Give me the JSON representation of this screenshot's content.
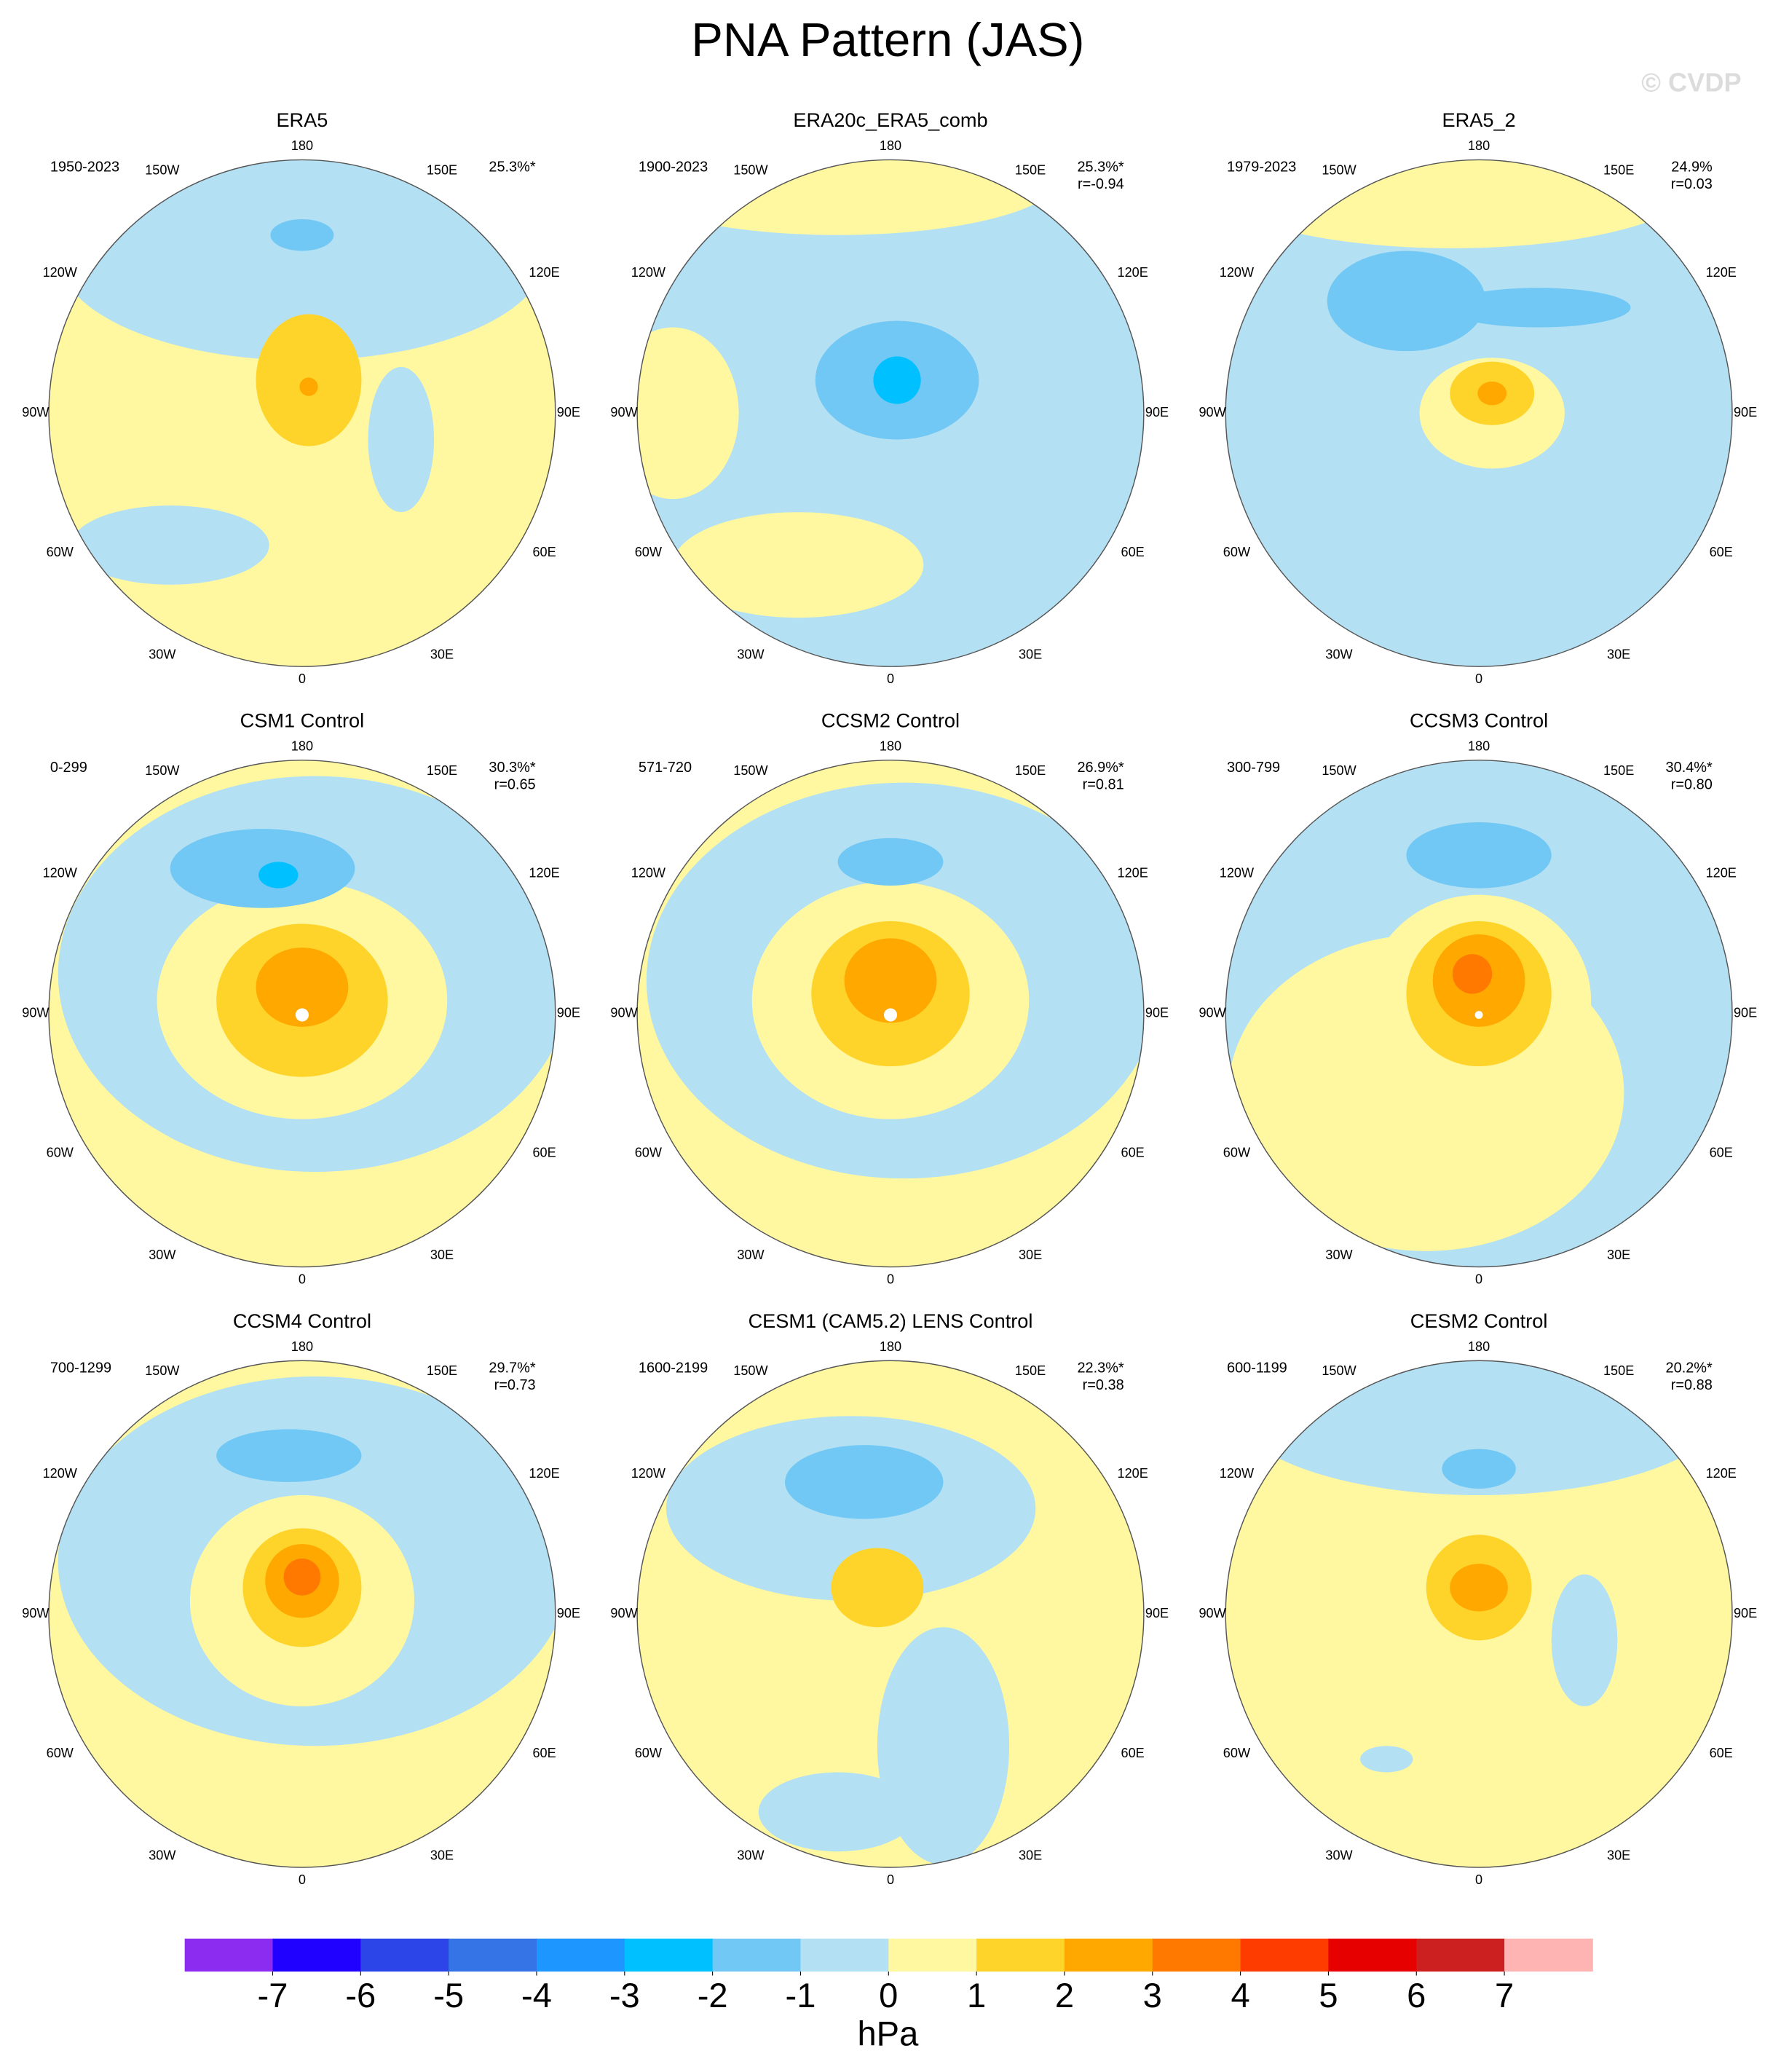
{
  "chart_data": {
    "type": "polar-map-panels",
    "title": "PNA Pattern (JAS)",
    "watermark": "© CVDP",
    "longitude_labels": [
      "0",
      "30E",
      "60E",
      "90E",
      "120E",
      "150E",
      "180",
      "150W",
      "120W",
      "90W",
      "60W",
      "30W"
    ],
    "panels": [
      {
        "title": "ERA5",
        "period": "1950-2023",
        "variance": "25.3%*"
      },
      {
        "title": "ERA20c_ERA5_comb",
        "period": "1900-2023",
        "variance": "25.3%*",
        "correlation": "r=-0.94"
      },
      {
        "title": "ERA5_2",
        "period": "1979-2023",
        "variance": "24.9%",
        "correlation": "r=0.03"
      },
      {
        "title": "CSM1 Control",
        "period": "0-299",
        "variance": "30.3%*",
        "correlation": "r=0.65"
      },
      {
        "title": "CCSM2 Control",
        "period": "571-720",
        "variance": "26.9%*",
        "correlation": "r=0.81"
      },
      {
        "title": "CCSM3 Control",
        "period": "300-799",
        "variance": "30.4%*",
        "correlation": "r=0.80"
      },
      {
        "title": "CCSM4 Control",
        "period": "700-1299",
        "variance": "29.7%*",
        "correlation": "r=0.73"
      },
      {
        "title": "CESM1 (CAM5.2) LENS Control",
        "period": "1600-2199",
        "variance": "22.3%*",
        "correlation": "r=0.38"
      },
      {
        "title": "CESM2 Control",
        "period": "600-1199",
        "variance": "20.2%*",
        "correlation": "r=0.88"
      }
    ],
    "colorbar": {
      "levels": [
        -7,
        -6,
        -5,
        -4,
        -3,
        -2,
        -1,
        0,
        1,
        2,
        3,
        4,
        5,
        6,
        7
      ],
      "colors": [
        "#8b2cf0",
        "#2000ff",
        "#2c45e8",
        "#3474e6",
        "#1e96ff",
        "#00c0ff",
        "#72c8f4",
        "#b4e0f3",
        "#fff8a0",
        "#ffd42a",
        "#ffa800",
        "#ff7800",
        "#ff3c00",
        "#e60000",
        "#cc2020",
        "#ffb4b4"
      ],
      "unit": "hPa"
    }
  }
}
